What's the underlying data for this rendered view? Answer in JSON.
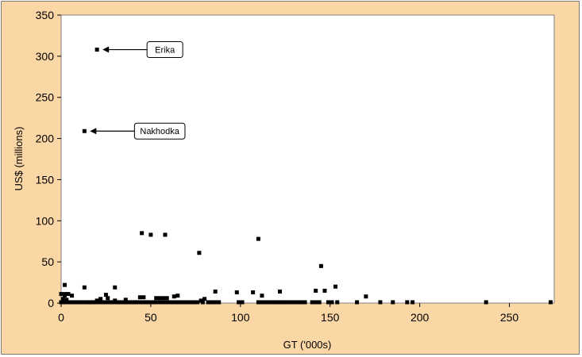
{
  "chart_data": {
    "type": "scatter",
    "title": "",
    "xlabel": "GT ('000s)",
    "ylabel": "US$ (millions)",
    "xlim": [
      0,
      275
    ],
    "ylim": [
      0,
      350
    ],
    "x_ticks": [
      "0",
      "50",
      "100",
      "150",
      "200",
      "250"
    ],
    "y_ticks": [
      "0",
      "50",
      "100",
      "150",
      "200",
      "250",
      "300",
      "350"
    ],
    "grid": false,
    "marker_color": "#000000",
    "plot_background": "#ffffff",
    "frame_background": "#FBD7A6",
    "annotations": [
      {
        "text": "Erika",
        "x": 20,
        "y": 308
      },
      {
        "text": "Nakhodka",
        "x": 13,
        "y": 209
      }
    ],
    "points": [
      [
        20,
        308
      ],
      [
        13,
        209
      ],
      [
        45,
        85
      ],
      [
        50,
        83
      ],
      [
        58,
        83
      ],
      [
        110,
        78
      ],
      [
        77,
        61
      ],
      [
        145,
        45
      ],
      [
        2,
        22
      ],
      [
        13,
        19
      ],
      [
        30,
        19
      ],
      [
        153,
        20
      ],
      [
        147,
        15
      ],
      [
        142,
        15
      ],
      [
        122,
        14
      ],
      [
        86,
        14
      ],
      [
        98,
        13
      ],
      [
        107,
        13
      ],
      [
        2,
        11
      ],
      [
        4,
        11
      ],
      [
        0,
        11
      ],
      [
        25,
        10
      ],
      [
        6,
        9
      ],
      [
        2,
        9
      ],
      [
        112,
        9
      ],
      [
        170,
        8
      ],
      [
        63,
        8
      ],
      [
        65,
        9
      ],
      [
        44,
        7
      ],
      [
        46,
        7
      ],
      [
        53,
        6
      ],
      [
        55,
        6
      ],
      [
        57,
        6
      ],
      [
        59,
        6
      ],
      [
        22,
        5
      ],
      [
        26,
        6
      ],
      [
        36,
        4
      ],
      [
        80,
        5
      ],
      [
        78,
        3
      ],
      [
        20,
        3
      ],
      [
        30,
        3
      ],
      [
        1,
        5
      ],
      [
        3,
        4
      ],
      [
        0,
        1
      ],
      [
        1,
        1
      ],
      [
        2,
        1
      ],
      [
        3,
        1
      ],
      [
        4,
        1
      ],
      [
        5,
        1
      ],
      [
        6,
        1
      ],
      [
        7,
        1
      ],
      [
        8,
        1
      ],
      [
        9,
        1
      ],
      [
        10,
        1
      ],
      [
        11,
        1
      ],
      [
        12,
        1
      ],
      [
        14,
        1
      ],
      [
        15,
        1
      ],
      [
        16,
        1
      ],
      [
        17,
        1
      ],
      [
        18,
        1
      ],
      [
        19,
        1
      ],
      [
        21,
        1
      ],
      [
        23,
        1
      ],
      [
        24,
        1
      ],
      [
        26,
        1
      ],
      [
        27,
        1
      ],
      [
        28,
        1
      ],
      [
        29,
        1
      ],
      [
        31,
        1
      ],
      [
        32,
        1
      ],
      [
        33,
        1
      ],
      [
        34,
        1
      ],
      [
        35,
        1
      ],
      [
        36,
        1
      ],
      [
        37,
        1
      ],
      [
        38,
        1
      ],
      [
        39,
        1
      ],
      [
        40,
        1
      ],
      [
        41,
        1
      ],
      [
        42,
        1
      ],
      [
        43,
        1
      ],
      [
        45,
        1
      ],
      [
        47,
        1
      ],
      [
        48,
        1
      ],
      [
        49,
        1
      ],
      [
        51,
        1
      ],
      [
        52,
        1
      ],
      [
        54,
        1
      ],
      [
        56,
        1
      ],
      [
        58,
        1
      ],
      [
        60,
        1
      ],
      [
        62,
        1
      ],
      [
        64,
        1
      ],
      [
        66,
        1
      ],
      [
        68,
        1
      ],
      [
        70,
        1
      ],
      [
        72,
        1
      ],
      [
        74,
        1
      ],
      [
        76,
        1
      ],
      [
        79,
        1
      ],
      [
        82,
        1
      ],
      [
        84,
        1
      ],
      [
        86,
        1
      ],
      [
        88,
        1
      ],
      [
        99,
        1
      ],
      [
        101,
        1
      ],
      [
        110,
        1
      ],
      [
        112,
        1
      ],
      [
        114,
        1
      ],
      [
        116,
        1
      ],
      [
        118,
        1
      ],
      [
        120,
        1
      ],
      [
        122,
        1
      ],
      [
        124,
        1
      ],
      [
        126,
        1
      ],
      [
        128,
        1
      ],
      [
        130,
        1
      ],
      [
        132,
        1
      ],
      [
        134,
        1
      ],
      [
        136,
        1
      ],
      [
        140,
        1
      ],
      [
        142,
        1
      ],
      [
        144,
        1
      ],
      [
        149,
        1
      ],
      [
        151,
        1
      ],
      [
        154,
        1
      ],
      [
        165,
        1
      ],
      [
        178,
        1
      ],
      [
        185,
        1
      ],
      [
        193,
        1
      ],
      [
        196,
        1
      ],
      [
        237,
        1
      ],
      [
        273,
        1
      ]
    ]
  }
}
